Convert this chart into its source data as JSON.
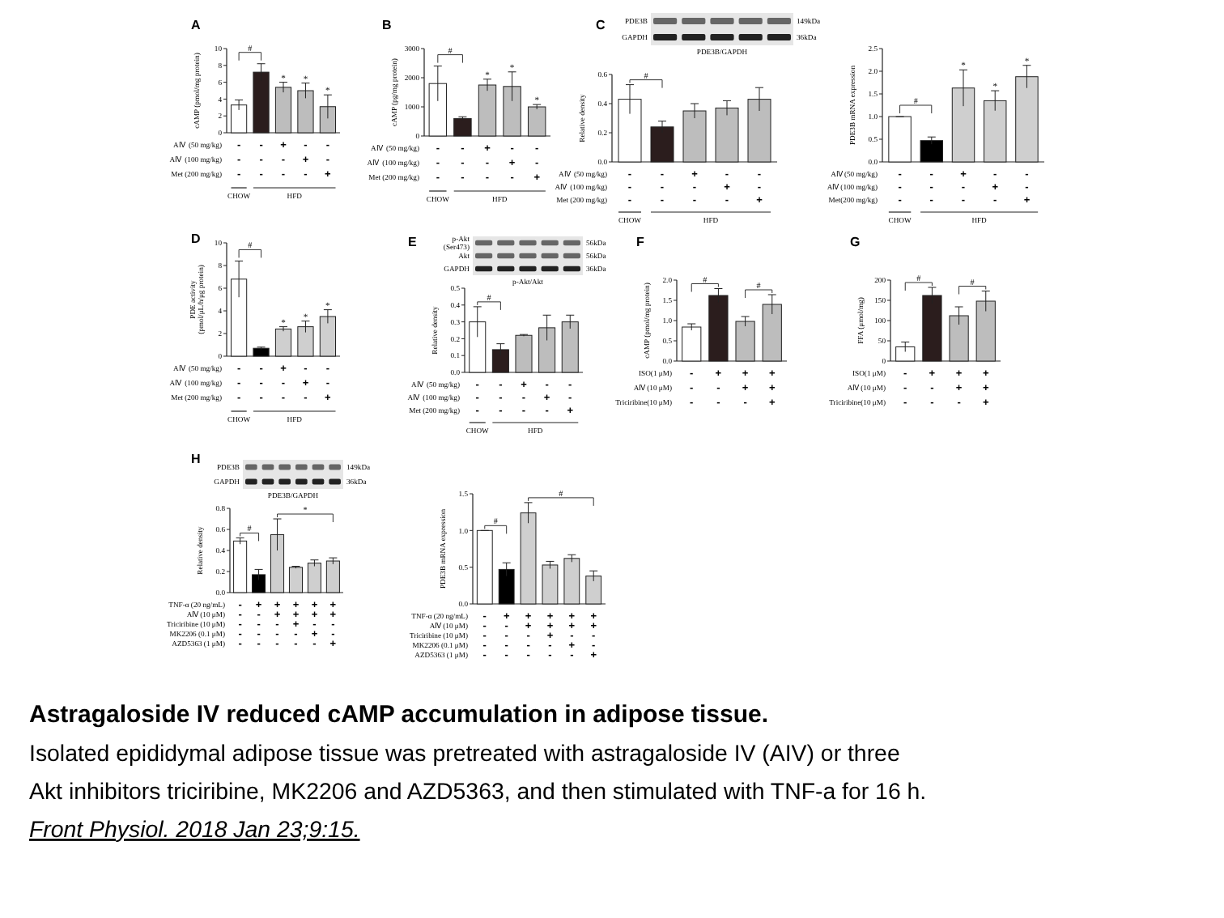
{
  "chart_data": [
    {
      "type": "bar",
      "title": "A",
      "ylabel": "cAMP (pmol/mg protein)",
      "categories": [
        null,
        null,
        null,
        null,
        null
      ],
      "values": [
        3.3,
        7.2,
        5.4,
        5.0,
        3.1
      ],
      "errors": [
        0.6,
        1.0,
        0.6,
        0.9,
        1.4
      ],
      "colors": [
        "#ffffff",
        "#2b1d1d",
        "#bdbdbd",
        "#bdbdbd",
        "#bdbdbd"
      ],
      "value_labels": [
        null,
        null,
        "*",
        "*",
        "*"
      ],
      "ylim": [
        0,
        10
      ],
      "yticks": [
        0,
        2,
        4,
        6,
        8,
        10
      ],
      "annotations": [
        "#",
        "AⅣ (50 mg/kg)\t-\t-\t+\t-\t-",
        "AⅣ (100 mg/kg)\t-\t-\t-\t+\t-",
        "Met (200 mg/kg)\t-\t-\t-\t-\t+",
        "\tCHOW\tHFD"
      ]
    },
    {
      "type": "bar",
      "title": "B",
      "ylabel": "cAMP (pg/mg protein)",
      "categories": [
        null,
        null,
        null,
        null,
        null
      ],
      "values": [
        1800,
        600,
        1750,
        1700,
        1000
      ],
      "errors": [
        600,
        60,
        200,
        500,
        80
      ],
      "colors": [
        "#ffffff",
        "#2b1d1d",
        "#bdbdbd",
        "#bdbdbd",
        "#bdbdbd"
      ],
      "value_labels": [
        null,
        null,
        "*",
        "*",
        "*"
      ],
      "ylim": [
        0,
        3000
      ],
      "yticks": [
        0,
        1000,
        2000,
        3000
      ],
      "annotations": [
        "#",
        "AⅣ (50 mg/kg)\t-\t-\t+\t-\t-",
        "AⅣ (100 mg/kg)\t-\t-\t-\t+\t-",
        "Met (200 mg/kg)\t-\t-\t-\t-\t+",
        "\tCHOW\tHFD"
      ]
    },
    {
      "type": "other",
      "title": "C",
      "subtitle": "PDE3B/GAPDH",
      "annotations": [
        "PDE3B\t149kDa",
        "GAPDH\t36kDa"
      ]
    },
    {
      "type": "bar",
      "ylabel": "Relative density",
      "categories": [
        null,
        null,
        null,
        null,
        null
      ],
      "values": [
        0.43,
        0.24,
        0.35,
        0.37,
        0.43
      ],
      "errors": [
        0.1,
        0.04,
        0.05,
        0.05,
        0.08
      ],
      "colors": [
        "#ffffff",
        "#2b1d1d",
        "#bdbdbd",
        "#bdbdbd",
        "#bdbdbd"
      ],
      "ylim": [
        0,
        0.6
      ],
      "yticks": [
        {
          "value": 0,
          "label": "0.0"
        },
        {
          "value": 0.2,
          "label": "0.2"
        },
        {
          "value": 0.4,
          "label": "0.4"
        },
        {
          "value": 0.6,
          "label": "0.6"
        }
      ],
      "annotations": [
        "#",
        "AⅣ (50 mg/kg)\t-\t-\t+\t-\t-",
        "AⅣ (100 mg/kg)\t-\t-\t-\t+\t-",
        "Met (200 mg/kg)\t-\t-\t-\t-\t+",
        "\tCHOW\tHFD"
      ]
    },
    {
      "type": "bar",
      "ylabel": "PDE3B mRNA expression",
      "categories": [
        null,
        null,
        null,
        null,
        null
      ],
      "values": [
        1.0,
        0.47,
        1.63,
        1.35,
        1.88
      ],
      "errors": [
        0,
        0.08,
        0.4,
        0.22,
        0.25
      ],
      "colors": [
        "#ffffff",
        "#000000",
        "#cfcfcf",
        "#cfcfcf",
        "#cfcfcf"
      ],
      "value_labels": [
        null,
        null,
        "*",
        "*",
        "*"
      ],
      "ylim": [
        0,
        2.5
      ],
      "yticks": [
        {
          "value": 0,
          "label": "0.0"
        },
        {
          "value": 0.5,
          "label": "0.5"
        },
        {
          "value": 1,
          "label": "1.0"
        },
        {
          "value": 1.5,
          "label": "1.5"
        },
        {
          "value": 2,
          "label": "2.0"
        },
        {
          "value": 2.5,
          "label": "2.5"
        }
      ],
      "annotations": [
        "#",
        "AⅣ(50 mg/kg)\t-\t-\t+\t-\t-",
        "AⅣ(100 mg/kg)\t-\t-\t-\t+\t-",
        "Met(200 mg/kg)\t-\t-\t-\t-\t+",
        "\tCHOW\tHFD"
      ]
    },
    {
      "type": "bar",
      "title": "D",
      "ylabel": "PDE activity\n(pmol/μL/h/μg protein)",
      "categories": [
        null,
        null,
        null,
        null,
        null
      ],
      "values": [
        6.8,
        0.7,
        2.4,
        2.6,
        3.5
      ],
      "errors": [
        1.6,
        0.1,
        0.2,
        0.5,
        0.6
      ],
      "colors": [
        "#ffffff",
        "#000000",
        "#cfcfcf",
        "#cfcfcf",
        "#cfcfcf"
      ],
      "value_labels": [
        null,
        null,
        "*",
        "*",
        "*"
      ],
      "ylim": [
        0,
        10
      ],
      "yticks": [
        0,
        2,
        4,
        6,
        8,
        10
      ],
      "annotations": [
        "#",
        "AⅣ (50 mg/kg)\t-\t-\t+\t-\t-",
        "AⅣ (100 mg/kg)\t-\t-\t-\t+\t-",
        "Met (200 mg/kg)\t-\t-\t-\t-\t+",
        "\tCHOW\tHFD"
      ]
    },
    {
      "type": "other",
      "title": "E",
      "subtitle": "p-Akt/Akt",
      "annotations": [
        "p-Akt\n(Ser473)\t56kDa",
        "Akt\t56kDa",
        "GAPDH\t36kDa"
      ]
    },
    {
      "type": "bar",
      "ylabel": "Relative density",
      "categories": [
        null,
        null,
        null,
        null,
        null
      ],
      "values": [
        0.3,
        0.135,
        0.22,
        0.265,
        0.3
      ],
      "errors": [
        0.09,
        0.035,
        0.005,
        0.075,
        0.04
      ],
      "colors": [
        "#ffffff",
        "#2b1d1d",
        "#bdbdbd",
        "#bdbdbd",
        "#bdbdbd"
      ],
      "ylim": [
        0,
        0.5
      ],
      "yticks": [
        {
          "value": 0,
          "label": "0.0"
        },
        {
          "value": 0.1,
          "label": "0.1"
        },
        {
          "value": 0.2,
          "label": "0.2"
        },
        {
          "value": 0.3,
          "label": "0.3"
        },
        {
          "value": 0.4,
          "label": "0.4"
        },
        {
          "value": 0.5,
          "label": "0.5"
        }
      ],
      "annotations": [
        "#",
        "AⅣ (50 mg/kg)\t-\t-\t+\t-\t-",
        "AⅣ (100 mg/kg)\t-\t-\t-\t+\t-",
        "Met (200 mg/kg)\t-\t-\t-\t-\t+",
        "\tCHOW\tHFD"
      ]
    },
    {
      "type": "bar",
      "title": "F",
      "ylabel": "cAMP (pmol/mg protein)",
      "categories": [
        null,
        null,
        null,
        null
      ],
      "values": [
        0.84,
        1.62,
        0.98,
        1.4
      ],
      "errors": [
        0.08,
        0.17,
        0.12,
        0.24
      ],
      "colors": [
        "#ffffff",
        "#2b1d1d",
        "#bdbdbd",
        "#bdbdbd"
      ],
      "ylim": [
        0,
        2
      ],
      "yticks": [
        {
          "value": 0,
          "label": "0.0"
        },
        {
          "value": 0.5,
          "label": "0.5"
        },
        {
          "value": 1,
          "label": "1.0"
        },
        {
          "value": 1.5,
          "label": "1.5"
        },
        {
          "value": 2,
          "label": "2.0"
        }
      ],
      "annotations": [
        "#",
        "#",
        "ISO(1 μM)\t-\t+\t+\t+",
        "AⅣ(10 μM)\t-\t-\t+\t+",
        "Triciribine(10 μM)\t-\t-\t-\t+"
      ]
    },
    {
      "type": "bar",
      "title": "G",
      "ylabel": "FFA (μmol/mg)",
      "categories": [
        null,
        null,
        null,
        null
      ],
      "values": [
        35,
        162,
        112,
        148
      ],
      "errors": [
        12,
        20,
        22,
        25
      ],
      "colors": [
        "#ffffff",
        "#2b1d1d",
        "#bdbdbd",
        "#bdbdbd"
      ],
      "ylim": [
        0,
        200
      ],
      "yticks": [
        0,
        50,
        100,
        150,
        200
      ],
      "annotations": [
        "#",
        "#",
        "ISO(1 μM)\t-\t+\t+\t+",
        "AⅣ(10 μM)\t-\t-\t+\t+",
        "Triciribine(10 μM)\t-\t-\t-\t+"
      ]
    },
    {
      "type": "other",
      "title": "H",
      "subtitle": "PDE3B/GAPDH",
      "annotations": [
        "PDE3B\t149kDa",
        "GAPDH\t36kDa"
      ]
    },
    {
      "type": "bar",
      "ylabel": "Relative density",
      "categories": [
        null,
        null,
        null,
        null,
        null,
        null
      ],
      "values": [
        0.49,
        0.17,
        0.55,
        0.24,
        0.28,
        0.3
      ],
      "errors": [
        0.03,
        0.05,
        0.15,
        0.01,
        0.03,
        0.03
      ],
      "colors": [
        "#ffffff",
        "#000000",
        "#cfcfcf",
        "#cfcfcf",
        "#cfcfcf",
        "#cfcfcf"
      ],
      "ylim": [
        0,
        0.8
      ],
      "yticks": [
        {
          "value": 0,
          "label": "0.0"
        },
        {
          "value": 0.2,
          "label": "0.2"
        },
        {
          "value": 0.4,
          "label": "0.4"
        },
        {
          "value": 0.6,
          "label": "0.6"
        },
        {
          "value": 0.8,
          "label": "0.8"
        }
      ],
      "annotations": [
        "#",
        "*",
        "TNF-α (20 ng/mL)\t-\t+\t+\t+\t+\t+",
        "AⅣ(10 μM)\t-\t-\t+\t+\t+\t+",
        "Triciribine (10 μM)\t-\t-\t-\t+\t-\t-",
        "MK2206 (0.1 μM)\t-\t-\t-\t-\t+\t-",
        "AZD5363 (1 μM)\t-\t-\t-\t-\t-\t+"
      ]
    },
    {
      "type": "bar",
      "ylabel": "PDE3B mRNA expression",
      "categories": [
        null,
        null,
        null,
        null,
        null,
        null
      ],
      "values": [
        1.0,
        0.47,
        1.24,
        0.53,
        0.62,
        0.38
      ],
      "errors": [
        0,
        0.09,
        0.14,
        0.05,
        0.05,
        0.07
      ],
      "colors": [
        "#ffffff",
        "#000000",
        "#cfcfcf",
        "#cfcfcf",
        "#cfcfcf",
        "#cfcfcf"
      ],
      "ylim": [
        0,
        1.5
      ],
      "yticks": [
        {
          "value": 0,
          "label": "0.0"
        },
        {
          "value": 0.5,
          "label": "0.5"
        },
        {
          "value": 1,
          "label": "1.0"
        },
        {
          "value": 1.5,
          "label": "1.5"
        }
      ],
      "annotations": [
        "#",
        "#",
        "TNF-α (20 ng/mL)\t-\t+\t+\t+\t+\t+",
        "AⅣ(10 μM)\t-\t-\t+\t+\t+\t+",
        "Triciribine (10 μM)\t-\t-\t-\t+\t-\t-",
        "MK2206 (0.1 μM)\t-\t-\t-\t-\t+\t-",
        "AZD5363 (1 μM)\t-\t-\t-\t-\t-\t+"
      ]
    },
    {
      "type": "other",
      "title": "Astragaloside IV reduced cAMP accumulation in adipose tissue.",
      "annotations": [
        "Isolated epididymal adipose tissue was pretreated with astragaloside IV (AIV) or three",
        "Akt inhibitors triciribine, MK2206 and AZD5363, and then stimulated with TNF-a for 16 h.",
        "Front Physiol. 2018 Jan 23;9:15."
      ]
    }
  ]
}
